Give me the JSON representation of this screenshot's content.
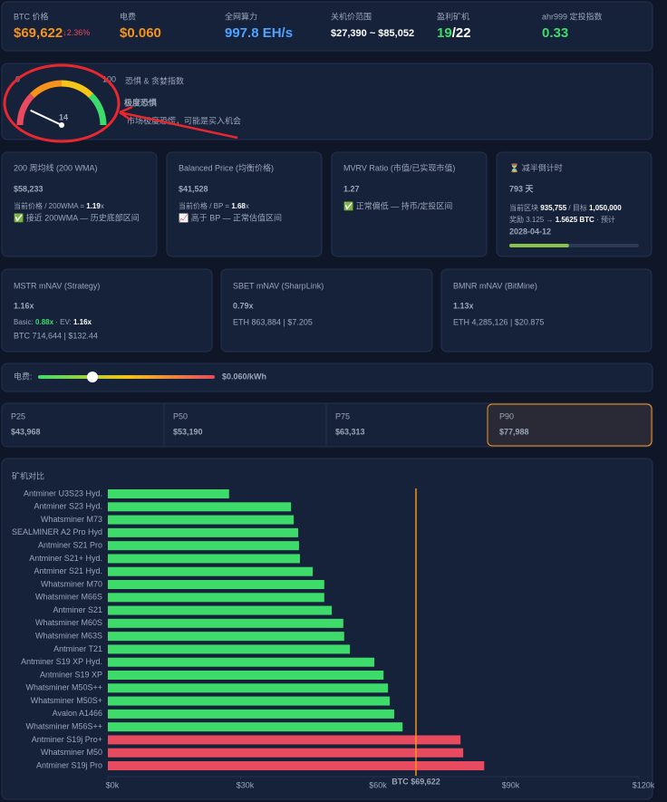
{
  "stats": [
    {
      "label": "BTC 价格",
      "value": "$69,622",
      "change": "↓2.36%"
    },
    {
      "label": "电费",
      "value": "$0.060"
    },
    {
      "label": "全网算力",
      "value": "997.8 EH/s"
    },
    {
      "label": "关机价范围",
      "value": "$27,390 ~ $85,052"
    },
    {
      "label": "盈利矿机",
      "value": "19",
      "total": "/22"
    },
    {
      "label": "ahr999 定投指数",
      "value": "0.33"
    }
  ],
  "fear_greed": {
    "title": "恐惧 & 贪婪指数",
    "min": 0,
    "max": 100,
    "value": 14,
    "level": "极度恐惧",
    "note": "市场极度恐慌，可能是买入机会"
  },
  "wma": {
    "title": "200 周均线 (200 WMA)",
    "value": "$58,233",
    "ratio_label": "当前价格 / 200WMA = ",
    "ratio": 1.19,
    "ratio_unit": "x",
    "status": "✅ 接近 200WMA — 历史底部区间"
  },
  "balanced": {
    "title": "Balanced Price (均衡价格)",
    "value": "$41,528",
    "ratio_label": "当前价格 / BP = ",
    "ratio": 1.68,
    "ratio_unit": "x",
    "status": "📈 高于 BP — 正常估值区间"
  },
  "mvrv": {
    "title": "MVRV Ratio (市值/已实现市值)",
    "value": 1.27,
    "status": "✅ 正常偏低 — 持币/定投区间"
  },
  "halving": {
    "title": "⏳ 减半倒计时",
    "value": "793 天",
    "block_label": "当前区块 ",
    "block": "935,755",
    "target_label": " / 目标 ",
    "target": "1,050,000",
    "reward_label": "奖励 3.125 → ",
    "reward": "1.5625 BTC",
    "date_label": " · 预计",
    "date": "2028-04-12",
    "progress": 46
  },
  "mnav": [
    {
      "title": "MSTR mNAV (Strategy)",
      "value": "1.16x",
      "basic_label": "Basic: ",
      "basic": "0.88x",
      "ev_label": " · EV: ",
      "ev": "1.16x",
      "detail": "BTC 714,644 | $132.44"
    },
    {
      "title": "SBET mNAV (SharpLink)",
      "value": "0.79x",
      "detail": "ETH 863,884 | $7.205"
    },
    {
      "title": "BMNR mNAV (BitMine)",
      "value": "1.13x",
      "detail": "ETH 4,285,126 | $20.875"
    }
  ],
  "slider": {
    "label": "电费:",
    "min": 0.02,
    "max": 0.15,
    "value": 0.06,
    "value_label": "$0.060/kWh"
  },
  "percentiles": {
    "items": [
      {
        "label": "P25",
        "value": "$43,968"
      },
      {
        "label": "P50",
        "value": "$53,190"
      },
      {
        "label": "P75",
        "value": "$63,313"
      },
      {
        "label": "P90",
        "value": "$77,988"
      }
    ],
    "highlight_index": 3
  },
  "chart_data": {
    "type": "bar",
    "orientation": "horizontal",
    "title": "矿机对比",
    "categories": [
      "Antminer U3S23 Hyd.",
      "Antminer S23 Hyd.",
      "Whatsminer M73",
      "SEALMINER A2 Pro Hyd",
      "Antminer S21 Pro",
      "Antminer S21+ Hyd.",
      "Antminer S21 Hyd.",
      "Whatsminer M70",
      "Whatsminer M66S",
      "Antminer S21",
      "Whatsminer M60S",
      "Whatsminer M63S",
      "Antminer T21",
      "Antminer S19 XP Hyd.",
      "Antminer S19 XP",
      "Whatsminer M50S++",
      "Whatsminer M50S+",
      "Avalon A1466",
      "Whatsminer M56S++",
      "Antminer S19j Pro+",
      "Whatsminer M50",
      "Antminer S19j Pro"
    ],
    "values": [
      27390,
      41400,
      42000,
      43000,
      43200,
      43400,
      46300,
      48900,
      48900,
      50600,
      53200,
      53400,
      54700,
      60200,
      62300,
      63300,
      63700,
      64700,
      66600,
      79700,
      80300,
      85052
    ],
    "xlim": [
      0,
      120000
    ],
    "xticks": [
      {
        "value": 0,
        "label": "$0k"
      },
      {
        "value": 30000,
        "label": "$30k"
      },
      {
        "value": 60000,
        "label": "$60k"
      },
      {
        "value": 90000,
        "label": "$90k"
      },
      {
        "value": 120000,
        "label": "$120k"
      }
    ],
    "reference": {
      "value": 69622,
      "label": "BTC $69,622",
      "color": "#f7931a"
    },
    "below_color": "#3ddc6a",
    "above_color": "#e84a5f"
  }
}
